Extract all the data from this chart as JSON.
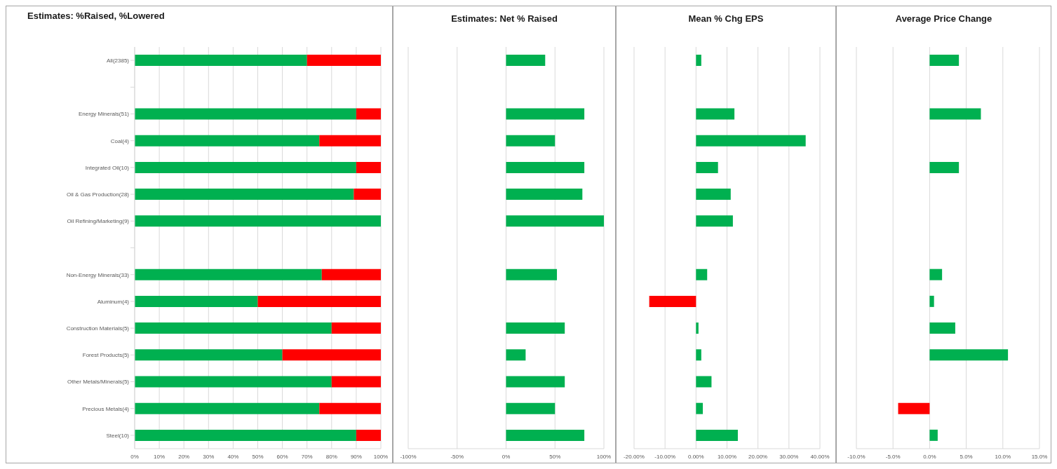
{
  "chart_data": [
    {
      "type": "bar",
      "orientation": "horizontal",
      "stacked": true,
      "title": "Estimates: %Raised, %Lowered",
      "categories": [
        "All(2385)",
        null,
        "Energy Minerals(51)",
        "Coal(4)",
        "Integrated Oil(10)",
        "Oil & Gas Production(28)",
        "Oil Refining/Marketing(9)",
        null,
        "Non-Energy Minerals(33)",
        "Aluminum(4)",
        "Construction Materials(5)",
        "Forest Products(5)",
        "Other Metals/Minerals(5)",
        "Precious Metals(4)",
        "Steel(10)"
      ],
      "series": [
        {
          "color": "#00b050",
          "values": [
            70,
            null,
            90,
            75,
            90,
            89,
            100,
            null,
            76,
            50,
            80,
            60,
            80,
            75,
            90
          ]
        },
        {
          "color": "#ff0000",
          "values": [
            30,
            null,
            10,
            25,
            10,
            11,
            0,
            null,
            24,
            50,
            20,
            40,
            20,
            25,
            10
          ]
        }
      ],
      "xlim": [
        0,
        100
      ],
      "xticks": [
        {
          "value": 0,
          "label": "0%"
        },
        {
          "value": 10,
          "label": "10%"
        },
        {
          "value": 20,
          "label": "20%"
        },
        {
          "value": 30,
          "label": "30%"
        },
        {
          "value": 40,
          "label": "40%"
        },
        {
          "value": 50,
          "label": "50%"
        },
        {
          "value": 60,
          "label": "60%"
        },
        {
          "value": 70,
          "label": "70%"
        },
        {
          "value": 80,
          "label": "80%"
        },
        {
          "value": 90,
          "label": "90%"
        },
        {
          "value": 100,
          "label": "100%"
        }
      ],
      "grid": "x"
    },
    {
      "type": "bar",
      "orientation": "horizontal",
      "title": "Estimates:  Net % Raised",
      "categories": [
        null,
        null,
        null,
        null,
        null,
        null,
        null,
        null,
        null,
        null,
        null,
        null,
        null,
        null,
        null
      ],
      "values": [
        40,
        null,
        80,
        50,
        80,
        78,
        100,
        null,
        52,
        0,
        60,
        20,
        60,
        50,
        80
      ],
      "color": "#00b050",
      "xlim": [
        -100,
        100
      ],
      "xticks": [
        {
          "value": -100,
          "label": "-100%"
        },
        {
          "value": -50,
          "label": "-50%"
        },
        {
          "value": 0,
          "label": "0%"
        },
        {
          "value": 50,
          "label": "50%"
        },
        {
          "value": 100,
          "label": "100%"
        }
      ],
      "grid": "x",
      "tick_labels": "x"
    },
    {
      "type": "bar",
      "orientation": "horizontal",
      "title": "Mean % Chg EPS",
      "categories": [
        null,
        null,
        null,
        null,
        null,
        null,
        null,
        null,
        null,
        null,
        null,
        null,
        null,
        null,
        null
      ],
      "values": [
        1.7,
        null,
        12.4,
        35.4,
        7.1,
        11.2,
        11.9,
        null,
        3.6,
        -15.1,
        0.8,
        1.7,
        5.0,
        2.2,
        13.5
      ],
      "colors": [
        "#00b050",
        null,
        "#00b050",
        "#00b050",
        "#00b050",
        "#00b050",
        "#00b050",
        null,
        "#00b050",
        "#ff0000",
        "#00b050",
        "#00b050",
        "#00b050",
        "#00b050",
        "#00b050"
      ],
      "xlim": [
        -20,
        40
      ],
      "xticks": [
        {
          "value": -20,
          "label": "-20.00%"
        },
        {
          "value": -10,
          "label": "-10.00%"
        },
        {
          "value": 0,
          "label": "0.00%"
        },
        {
          "value": 10,
          "label": "10.00%"
        },
        {
          "value": 20,
          "label": "20.00%"
        },
        {
          "value": 30,
          "label": "30.00%"
        },
        {
          "value": 40,
          "label": "40.00%"
        }
      ],
      "grid": "x",
      "tick_labels": "x"
    },
    {
      "type": "bar",
      "orientation": "horizontal",
      "title": "Average Price Change",
      "categories": [
        null,
        null,
        null,
        null,
        null,
        null,
        null,
        null,
        null,
        null,
        null,
        null,
        null,
        null,
        null
      ],
      "values": [
        4.0,
        null,
        7.0,
        null,
        4.0,
        null,
        null,
        null,
        1.7,
        0.6,
        3.5,
        10.7,
        null,
        -4.3,
        1.1
      ],
      "colors": [
        "#00b050",
        null,
        "#00b050",
        null,
        "#00b050",
        null,
        null,
        null,
        "#00b050",
        "#00b050",
        "#00b050",
        "#00b050",
        null,
        "#ff0000",
        "#00b050"
      ],
      "xlim": [
        -10,
        15
      ],
      "xticks": [
        {
          "value": -10,
          "label": "-10.0%"
        },
        {
          "value": -5,
          "label": "-5.0%"
        },
        {
          "value": 0,
          "label": "0.0%"
        },
        {
          "value": 5,
          "label": "5.0%"
        },
        {
          "value": 10,
          "label": "10.0%"
        },
        {
          "value": 15,
          "label": "15.0%"
        }
      ],
      "grid": "x",
      "tick_labels": "x"
    }
  ]
}
